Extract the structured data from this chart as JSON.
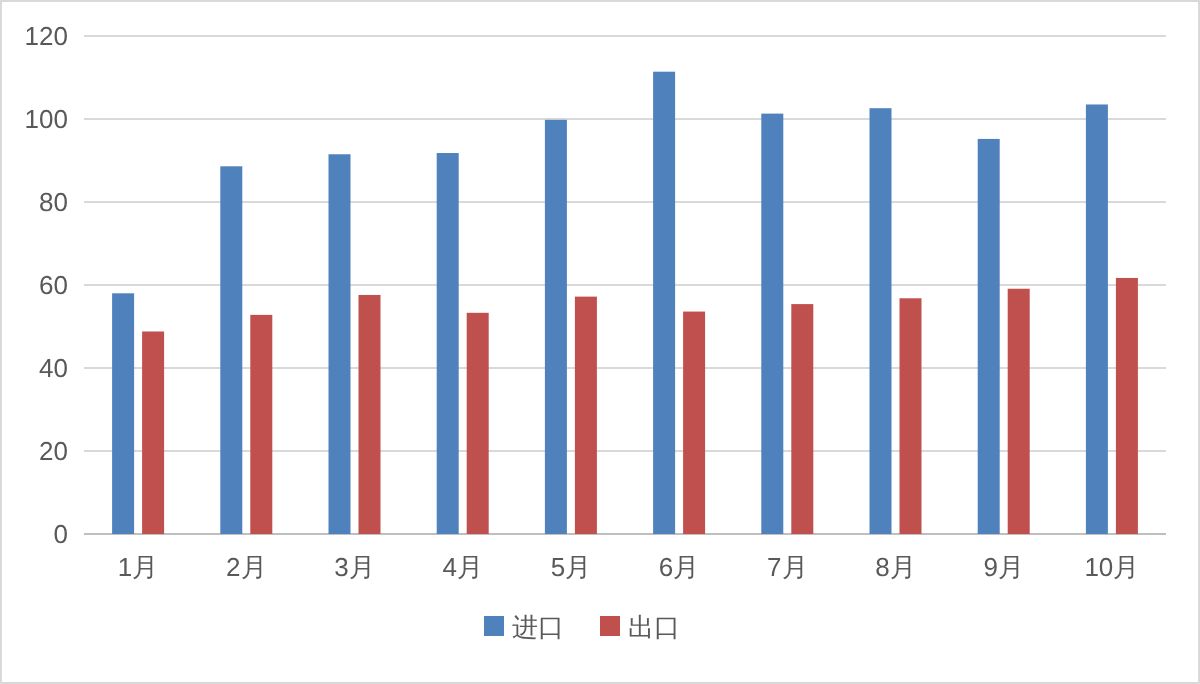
{
  "chart_data": {
    "type": "bar",
    "categories": [
      "1月",
      "2月",
      "3月",
      "4月",
      "5月",
      "6月",
      "7月",
      "8月",
      "9月",
      "10月"
    ],
    "series": [
      {
        "name": "进口",
        "color": "#4f81bd",
        "values": [
          58,
          88.6,
          91.5,
          91.8,
          99.8,
          111.4,
          101.3,
          102.6,
          95.2,
          103.5
        ]
      },
      {
        "name": "出口",
        "color": "#c0504d",
        "values": [
          48.8,
          52.8,
          57.6,
          53.3,
          57.2,
          53.6,
          55.4,
          56.8,
          59.1,
          61.7
        ]
      }
    ],
    "ylim": [
      0,
      120
    ],
    "yticks": [
      0,
      20,
      40,
      60,
      80,
      100,
      120
    ],
    "grid": "y",
    "legend": "bottom"
  }
}
